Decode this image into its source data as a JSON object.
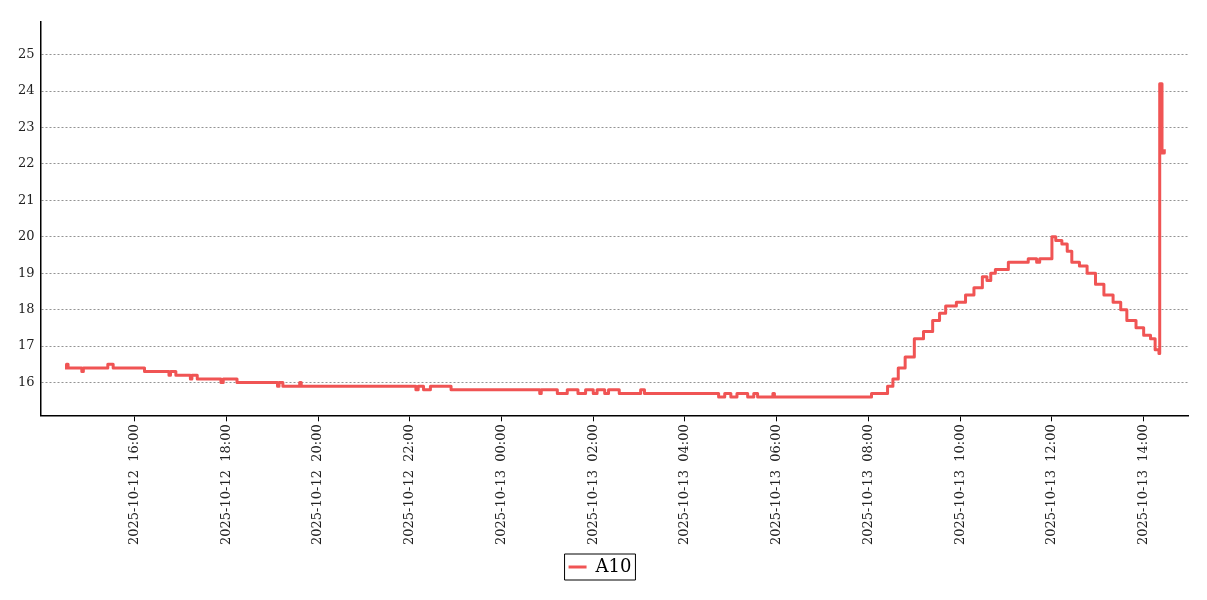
{
  "chart_data": {
    "type": "step",
    "x": [
      "2025-10-12T14:29",
      "2025-10-12T14:31",
      "2025-10-12T14:33",
      "2025-10-12T14:51",
      "2025-10-12T14:53",
      "2025-10-12T15:25",
      "2025-10-12T15:32",
      "2025-10-12T16:13",
      "2025-10-12T16:45",
      "2025-10-12T16:47",
      "2025-10-12T16:54",
      "2025-10-12T17:13",
      "2025-10-12T17:15",
      "2025-10-12T17:22",
      "2025-10-12T17:53",
      "2025-10-12T17:56",
      "2025-10-12T18:14",
      "2025-10-12T19:07",
      "2025-10-12T19:09",
      "2025-10-12T19:14",
      "2025-10-12T19:36",
      "2025-10-12T19:38",
      "2025-10-12T22:08",
      "2025-10-12T22:11",
      "2025-10-12T22:18",
      "2025-10-12T22:27",
      "2025-10-12T22:54",
      "2025-10-13T00:50",
      "2025-10-13T00:52",
      "2025-10-13T01:13",
      "2025-10-13T01:26",
      "2025-10-13T01:40",
      "2025-10-13T01:50",
      "2025-10-13T02:00",
      "2025-10-13T02:05",
      "2025-10-13T02:15",
      "2025-10-13T02:20",
      "2025-10-13T02:34",
      "2025-10-13T03:02",
      "2025-10-13T03:07",
      "2025-10-13T04:44",
      "2025-10-13T04:52",
      "2025-10-13T05:00",
      "2025-10-13T05:08",
      "2025-10-13T05:22",
      "2025-10-13T05:30",
      "2025-10-13T05:35",
      "2025-10-13T05:55",
      "2025-10-13T05:57",
      "2025-10-13T08:04",
      "2025-10-13T08:17",
      "2025-10-13T08:25",
      "2025-10-13T08:32",
      "2025-10-13T08:39",
      "2025-10-13T08:48",
      "2025-10-13T09:00",
      "2025-10-13T09:12",
      "2025-10-13T09:24",
      "2025-10-13T09:33",
      "2025-10-13T09:41",
      "2025-10-13T09:55",
      "2025-10-13T10:07",
      "2025-10-13T10:18",
      "2025-10-13T10:29",
      "2025-10-13T10:35",
      "2025-10-13T10:40",
      "2025-10-13T10:46",
      "2025-10-13T11:03",
      "2025-10-13T11:29",
      "2025-10-13T11:40",
      "2025-10-13T11:44",
      "2025-10-13T12:00",
      "2025-10-13T12:05",
      "2025-10-13T12:13",
      "2025-10-13T12:20",
      "2025-10-13T12:26",
      "2025-10-13T12:36",
      "2025-10-13T12:46",
      "2025-10-13T12:57",
      "2025-10-13T13:08",
      "2025-10-13T13:20",
      "2025-10-13T13:30",
      "2025-10-13T13:38",
      "2025-10-13T13:50",
      "2025-10-13T14:00",
      "2025-10-13T14:09",
      "2025-10-13T14:15",
      "2025-10-13T14:20",
      "2025-10-13T14:21",
      "2025-10-13T14:24",
      "2025-10-13T14:27"
    ],
    "series": [
      {
        "name": "A10",
        "color": "#f05454",
        "values": [
          16.4,
          16.5,
          16.4,
          16.3,
          16.4,
          16.5,
          16.4,
          16.3,
          16.2,
          16.3,
          16.2,
          16.1,
          16.2,
          16.1,
          16.0,
          16.1,
          16.0,
          15.9,
          16.0,
          15.9,
          16.0,
          15.9,
          15.8,
          15.9,
          15.8,
          15.9,
          15.8,
          15.7,
          15.8,
          15.7,
          15.8,
          15.7,
          15.8,
          15.7,
          15.8,
          15.7,
          15.8,
          15.7,
          15.8,
          15.7,
          15.6,
          15.7,
          15.6,
          15.7,
          15.6,
          15.7,
          15.6,
          15.7,
          15.6,
          15.7,
          15.7,
          15.9,
          16.1,
          16.4,
          16.7,
          17.2,
          17.4,
          17.7,
          17.9,
          18.1,
          18.2,
          18.4,
          18.6,
          18.9,
          18.8,
          19.0,
          19.1,
          19.3,
          19.4,
          19.3,
          19.4,
          20.0,
          19.9,
          19.8,
          19.6,
          19.3,
          19.2,
          19.0,
          18.7,
          18.4,
          18.2,
          18.0,
          17.7,
          17.5,
          17.3,
          17.2,
          16.9,
          16.8,
          24.2,
          22.3,
          22.4
        ]
      }
    ],
    "xlim": [
      "2025-10-12T13:57",
      "2025-10-13T14:58"
    ],
    "xticks": [
      {
        "value": "2025-10-12T16:00",
        "label": "2025-10-12  16:00"
      },
      {
        "value": "2025-10-12T18:00",
        "label": "2025-10-12  18:00"
      },
      {
        "value": "2025-10-12T20:00",
        "label": "2025-10-12  20:00"
      },
      {
        "value": "2025-10-12T22:00",
        "label": "2025-10-12  22:00"
      },
      {
        "value": "2025-10-13T00:00",
        "label": "2025-10-13  00:00"
      },
      {
        "value": "2025-10-13T02:00",
        "label": "2025-10-13  02:00"
      },
      {
        "value": "2025-10-13T04:00",
        "label": "2025-10-13  04:00"
      },
      {
        "value": "2025-10-13T06:00",
        "label": "2025-10-13  06:00"
      },
      {
        "value": "2025-10-13T08:00",
        "label": "2025-10-13  08:00"
      },
      {
        "value": "2025-10-13T10:00",
        "label": "2025-10-13  10:00"
      },
      {
        "value": "2025-10-13T12:00",
        "label": "2025-10-13  12:00"
      },
      {
        "value": "2025-10-13T14:00",
        "label": "2025-10-13  14:00"
      }
    ],
    "ylim": [
      15.1,
      25.9
    ],
    "yticks": [
      16,
      17,
      18,
      19,
      20,
      21,
      22,
      23,
      24,
      25
    ],
    "grid": "y",
    "line_style": "solid",
    "marker": "none",
    "legend": "bottom"
  }
}
